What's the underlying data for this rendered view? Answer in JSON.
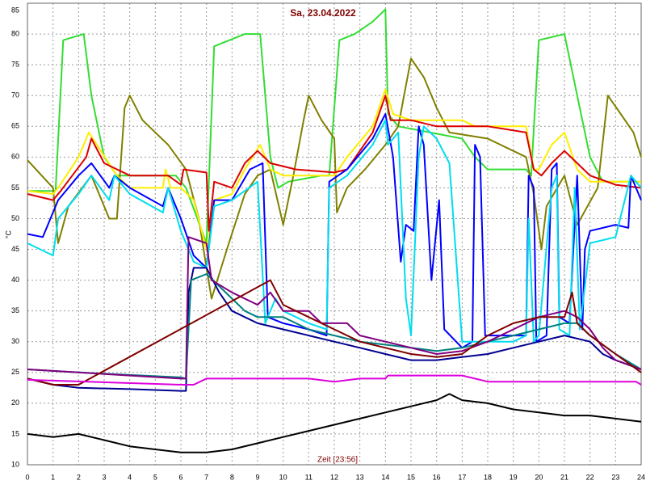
{
  "chart_data": {
    "type": "line",
    "title": "Sa, 23.04.2022",
    "xlabel": "Zeit [23:56]",
    "ylabel": "°C",
    "xlim": [
      0,
      24
    ],
    "ylim": [
      10,
      85
    ],
    "xticks": [
      0,
      1,
      2,
      3,
      4,
      5,
      6,
      7,
      8,
      9,
      10,
      11,
      12,
      13,
      14,
      15,
      16,
      17,
      18,
      19,
      20,
      21,
      22,
      23,
      24
    ],
    "yticks": [
      10,
      15,
      20,
      25,
      30,
      35,
      40,
      45,
      50,
      55,
      60,
      65,
      70,
      75,
      80,
      85
    ],
    "grid": true,
    "series": [
      {
        "color": "#33dd33",
        "x": [
          0,
          1.1,
          1.4,
          2.2,
          2.5,
          3,
          3.5,
          5.8,
          6.2,
          7,
          7.3,
          8.5,
          9.1,
          9.5,
          9.8,
          10.2,
          11.5,
          11.8,
          12.2,
          12.8,
          13.5,
          14,
          14.1,
          14.5,
          17,
          17.5,
          18,
          19.5,
          19.7,
          20,
          21,
          21.5,
          22,
          22.5,
          24
        ],
        "values": [
          54.5,
          54.5,
          79,
          80,
          70,
          60,
          57,
          57,
          55,
          46,
          78,
          80,
          80,
          60,
          55,
          56,
          57,
          57,
          79,
          80,
          82,
          84,
          67,
          65,
          63,
          60,
          58,
          58,
          57,
          79,
          80,
          70,
          60,
          56,
          56
        ]
      },
      {
        "color": "#808000",
        "x": [
          0,
          1,
          1.2,
          1.6,
          2.5,
          3,
          3.2,
          3.5,
          3.8,
          4,
          4.5,
          5.5,
          6.2,
          6.7,
          7,
          7.2,
          7.8,
          8.5,
          9,
          9.5,
          10,
          10.4,
          10.8,
          11,
          11.5,
          12,
          12.1,
          12.5,
          13.2,
          14,
          14.5,
          15,
          15.5,
          16,
          16.5,
          18,
          19.5,
          19.8,
          20.1,
          20.3,
          21,
          21.5,
          22.3,
          22.7,
          23.2,
          23.7,
          24
        ],
        "values": [
          59.5,
          55,
          46,
          52,
          57,
          52,
          50,
          50,
          68,
          70,
          66,
          62,
          58,
          50,
          42,
          37,
          45,
          54,
          57,
          58,
          49,
          57,
          66,
          70,
          66,
          63,
          51,
          55,
          58,
          62,
          65,
          76,
          73,
          68,
          64,
          63,
          60,
          54,
          45,
          52,
          57,
          49,
          55,
          70,
          67,
          64,
          60
        ]
      },
      {
        "color": "#ffee00",
        "x": [
          0,
          1,
          1.2,
          2,
          2.4,
          3.5,
          4,
          5.3,
          5.4,
          5.6,
          6,
          6.5,
          7,
          7.3,
          8,
          8.5,
          9.1,
          9.5,
          10,
          12,
          12.5,
          13.5,
          14,
          14.3,
          15,
          16,
          17,
          17.5,
          19.5,
          19.8,
          20,
          20.5,
          21,
          21.5,
          22,
          24
        ],
        "values": [
          54.5,
          54,
          55,
          60,
          64,
          57,
          55,
          55,
          58,
          55,
          55,
          53,
          45,
          53,
          54,
          58,
          62,
          58,
          57,
          57,
          60,
          65,
          71,
          67,
          66,
          66,
          66,
          65,
          65,
          58,
          58,
          62,
          64,
          58,
          56,
          56
        ]
      },
      {
        "color": "#dd0000",
        "x": [
          0,
          1,
          1.3,
          2.3,
          2.5,
          3,
          4,
          5.5,
          6,
          6.1,
          7,
          7.1,
          7.3,
          8,
          8.5,
          9,
          9.5,
          10.5,
          12,
          12.5,
          13.5,
          14,
          14.2,
          15,
          16,
          18,
          19.5,
          19.8,
          20.1,
          20.5,
          21,
          21.5,
          22,
          23,
          24
        ],
        "values": [
          54,
          53,
          54.5,
          60,
          63,
          59,
          57,
          57,
          55.5,
          58,
          57.5,
          48,
          56,
          55,
          59,
          61,
          59,
          58,
          57.5,
          58,
          64,
          70,
          66,
          66,
          65,
          65,
          64,
          58,
          57,
          59,
          61,
          59,
          57,
          55.5,
          55
        ]
      },
      {
        "color": "#0000ff",
        "x": [
          0,
          0.6,
          1.2,
          2,
          2.5,
          3.2,
          3.4,
          4,
          5.3,
          5.5,
          6,
          6.5,
          7,
          7.3,
          8,
          8.7,
          9.2,
          9.4,
          10,
          11,
          11.7,
          11.8,
          12.5,
          13.5,
          14,
          14.3,
          14.6,
          14.8,
          15.1,
          15.3,
          15.5,
          15.8,
          16.1,
          16.3,
          17,
          17.4,
          17.5,
          17.7,
          17.9,
          18.5,
          19.5,
          19.6,
          19.8,
          19.9,
          20.3,
          20.5,
          20.7,
          20.8,
          21.2,
          21.5,
          21.7,
          21.8,
          22,
          23,
          23.5,
          23.6,
          24
        ],
        "values": [
          47.5,
          47,
          53,
          57,
          59,
          55,
          57,
          55,
          52,
          55,
          50,
          44,
          42,
          53,
          53,
          58,
          59,
          34,
          33,
          32,
          31,
          56,
          58,
          63,
          67,
          60,
          43,
          49,
          48,
          65,
          62,
          40,
          53,
          32,
          29,
          30,
          62,
          60,
          31,
          31,
          31,
          57,
          55,
          30,
          31,
          58,
          59,
          34,
          33,
          57,
          32,
          45,
          48,
          49,
          48.5,
          57,
          53
        ]
      },
      {
        "color": "#00ddee",
        "x": [
          0,
          1,
          1.2,
          2,
          2.5,
          3.2,
          3.4,
          4,
          5.3,
          5.5,
          6,
          6.5,
          7,
          7.3,
          8,
          9,
          9.3,
          9.7,
          10,
          11,
          11.7,
          11.8,
          12.5,
          13.5,
          14,
          14.1,
          14.5,
          14.8,
          15,
          15.3,
          15.5,
          16,
          16.5,
          17,
          18,
          19,
          19.5,
          19.6,
          19.8,
          20,
          20.5,
          20.7,
          20.8,
          21.2,
          21.4,
          21.6,
          22,
          23,
          23.6,
          24
        ],
        "values": [
          46,
          44,
          50,
          54,
          57,
          53,
          57,
          54,
          51,
          55,
          48,
          43,
          42,
          52,
          53,
          56,
          33,
          37,
          35,
          33,
          32,
          55,
          57,
          62,
          66,
          62,
          64,
          37,
          31,
          60,
          65,
          63,
          59,
          30,
          30,
          30,
          31,
          50,
          30,
          31,
          55,
          57,
          32,
          31,
          55,
          32,
          46,
          47,
          57,
          55
        ]
      },
      {
        "color": "#000090",
        "x": [
          0,
          1,
          2,
          4,
          6,
          6.2,
          6.3,
          6.5,
          7,
          7.5,
          8,
          9,
          10,
          11,
          12,
          13,
          14,
          15,
          16,
          17,
          18,
          19,
          20,
          21,
          22,
          22.5,
          23,
          24
        ],
        "values": [
          24,
          23,
          22.5,
          22.3,
          22,
          22,
          38,
          42,
          42,
          38,
          35,
          33,
          32,
          31,
          30,
          29,
          28,
          27,
          27,
          27.5,
          28,
          29,
          30,
          31,
          30,
          28,
          27,
          25.5
        ]
      },
      {
        "color": "#008080",
        "x": [
          0,
          2,
          6,
          6.2,
          6.4,
          7,
          8,
          8.5,
          9,
          10,
          11,
          12,
          13,
          14,
          15,
          16,
          17,
          18,
          19,
          20,
          21,
          21.5,
          22,
          23,
          24
        ],
        "values": [
          25.5,
          25,
          24.2,
          24,
          40,
          41,
          37,
          35,
          34,
          34,
          32,
          31,
          30,
          29.5,
          29,
          28.5,
          29,
          30,
          31,
          32,
          33,
          33,
          31,
          28,
          25.5
        ]
      },
      {
        "color": "#800080",
        "x": [
          0,
          2,
          6,
          6.2,
          6.3,
          7,
          7.2,
          8,
          9,
          9.5,
          10,
          11,
          11.5,
          12,
          12.5,
          13,
          14,
          15,
          16,
          17,
          18,
          19,
          20,
          21,
          21.5,
          22,
          22.5,
          23,
          24
        ],
        "values": [
          25.5,
          25,
          24,
          24,
          47,
          46,
          40,
          38,
          36,
          38,
          35,
          35,
          33,
          33,
          33,
          31,
          30,
          29,
          28,
          28.5,
          30,
          32,
          34,
          35,
          34,
          32,
          29,
          27,
          25.5
        ]
      },
      {
        "color": "#800000",
        "x": [
          0,
          1,
          2,
          9.5,
          10,
          11,
          12,
          13,
          14,
          15,
          16,
          17,
          18,
          19,
          20,
          21,
          21.3,
          21.5,
          22,
          23,
          24
        ],
        "values": [
          24,
          23,
          23,
          40,
          36,
          34,
          32,
          30,
          29,
          28,
          27.5,
          28,
          31,
          33,
          34,
          34,
          38,
          33,
          31,
          28,
          25
        ]
      },
      {
        "color": "#dd00dd",
        "x": [
          0,
          6,
          6.5,
          7,
          11,
          12,
          13,
          14,
          14.1,
          17,
          18,
          20,
          23.8,
          24
        ],
        "values": [
          23.8,
          23,
          23,
          24,
          24,
          23.5,
          24,
          24,
          24.5,
          24.5,
          23.5,
          23.5,
          23.5,
          23
        ]
      },
      {
        "color": "#000000",
        "x": [
          0,
          1,
          2,
          3,
          4,
          5,
          6,
          7,
          8,
          9,
          10,
          11,
          12,
          13,
          14,
          15,
          16,
          16.5,
          17,
          18,
          19,
          20,
          21,
          22,
          23,
          24
        ],
        "values": [
          15,
          14.5,
          15,
          14,
          13,
          12.5,
          12,
          12,
          12.5,
          13.5,
          14.5,
          15.5,
          16.5,
          17.5,
          18.5,
          19.5,
          20.5,
          21.5,
          20.5,
          20,
          19,
          18.5,
          18,
          18,
          17.5,
          17
        ]
      }
    ]
  }
}
